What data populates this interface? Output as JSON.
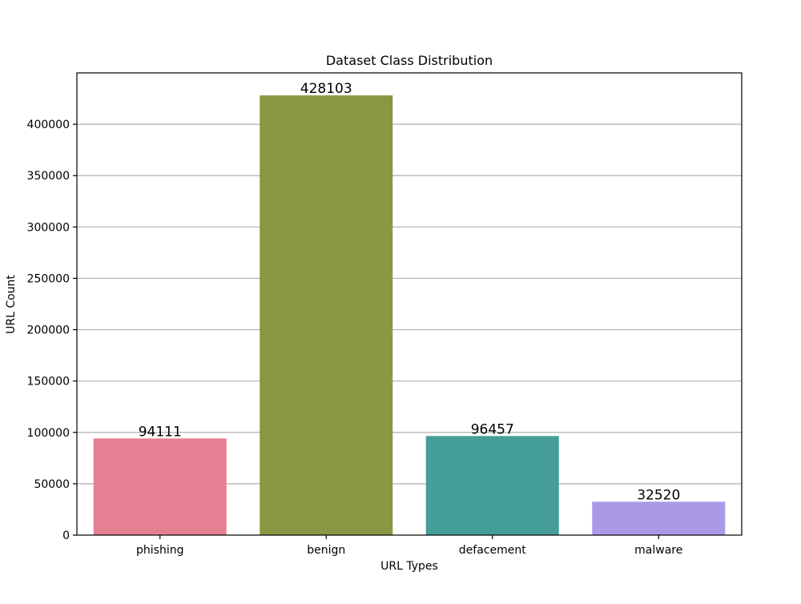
{
  "chart_data": {
    "type": "bar",
    "title": "Dataset Class Distribution",
    "xlabel": "URL Types",
    "ylabel": "URL Count",
    "categories": [
      "phishing",
      "benign",
      "defacement",
      "malware"
    ],
    "values": [
      94111,
      428103,
      96457,
      32520
    ],
    "value_labels": [
      "94111",
      "428103",
      "96457",
      "32520"
    ],
    "colors": [
      "#e58092",
      "#8b9643",
      "#459e98",
      "#ab99e8"
    ],
    "ylim": [
      0,
      450000
    ],
    "yticks": [
      0,
      50000,
      100000,
      150000,
      200000,
      250000,
      300000,
      350000,
      400000
    ],
    "ytick_labels": [
      "0",
      "50000",
      "100000",
      "150000",
      "200000",
      "250000",
      "300000",
      "350000",
      "400000"
    ],
    "grid": "horizontal",
    "legend": "none"
  }
}
